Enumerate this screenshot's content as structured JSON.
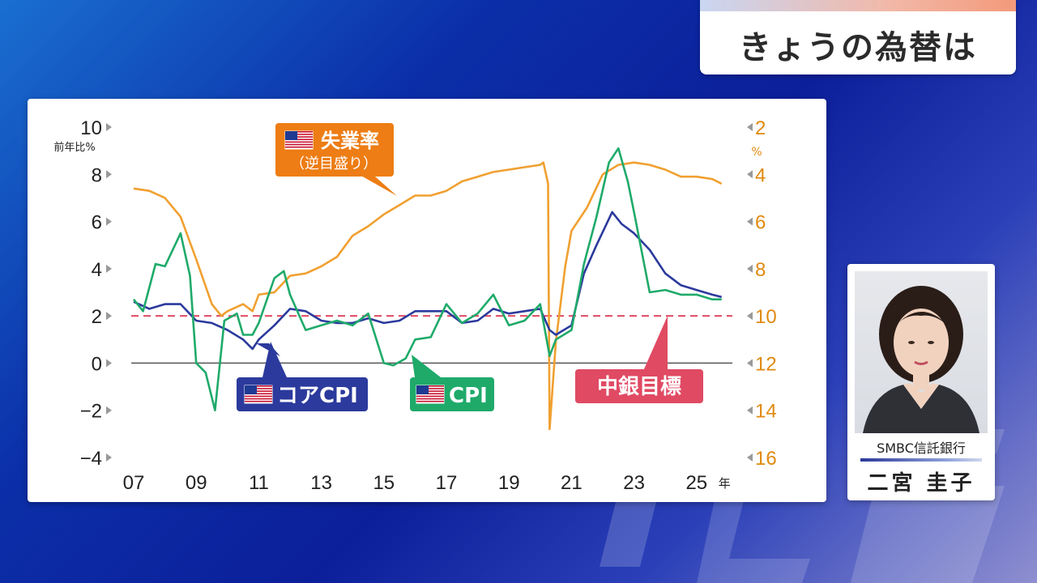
{
  "header": {
    "title": "きょうの為替は"
  },
  "presenter": {
    "company": "SMBC信託銀行",
    "name": "二宮 圭子"
  },
  "colors": {
    "unemployment": "#f0a030",
    "core_cpi": "#2b3a9c",
    "cpi": "#1faa6a",
    "target": "#e04a63"
  },
  "chart_data": {
    "type": "line",
    "x_ticks": [
      "07",
      "09",
      "11",
      "13",
      "15",
      "17",
      "19",
      "21",
      "23",
      "25"
    ],
    "x_unit": "年",
    "y_left": {
      "label": "前年比%",
      "range": [
        -4,
        10
      ],
      "ticks": [
        "10",
        "8",
        "6",
        "4",
        "2",
        "0",
        "−2",
        "−4"
      ]
    },
    "y_right": {
      "label": "%",
      "range": [
        16,
        2
      ],
      "inverted": true,
      "ticks": [
        "2",
        "4",
        "6",
        "8",
        "10",
        "12",
        "14",
        "16"
      ]
    },
    "series": [
      {
        "name": "失業率",
        "sub": "（逆目盛り）",
        "axis": "right",
        "color": "#f0a030",
        "points": [
          [
            2007.0,
            4.6
          ],
          [
            2007.5,
            4.7
          ],
          [
            2008.0,
            5.0
          ],
          [
            2008.5,
            5.8
          ],
          [
            2009.0,
            7.6
          ],
          [
            2009.5,
            9.5
          ],
          [
            2009.8,
            10.0
          ],
          [
            2010.0,
            9.8
          ],
          [
            2010.5,
            9.5
          ],
          [
            2010.8,
            9.8
          ],
          [
            2011.0,
            9.1
          ],
          [
            2011.5,
            9.0
          ],
          [
            2012.0,
            8.3
          ],
          [
            2012.5,
            8.2
          ],
          [
            2013.0,
            7.9
          ],
          [
            2013.5,
            7.5
          ],
          [
            2014.0,
            6.6
          ],
          [
            2014.5,
            6.2
          ],
          [
            2015.0,
            5.7
          ],
          [
            2015.5,
            5.3
          ],
          [
            2016.0,
            4.9
          ],
          [
            2016.5,
            4.9
          ],
          [
            2017.0,
            4.7
          ],
          [
            2017.5,
            4.3
          ],
          [
            2018.0,
            4.1
          ],
          [
            2018.5,
            3.9
          ],
          [
            2019.0,
            3.8
          ],
          [
            2019.5,
            3.7
          ],
          [
            2020.0,
            3.6
          ],
          [
            2020.1,
            3.5
          ],
          [
            2020.25,
            4.4
          ],
          [
            2020.3,
            14.8
          ],
          [
            2020.5,
            11.1
          ],
          [
            2020.8,
            7.9
          ],
          [
            2021.0,
            6.4
          ],
          [
            2021.5,
            5.4
          ],
          [
            2022.0,
            4.0
          ],
          [
            2022.5,
            3.6
          ],
          [
            2023.0,
            3.5
          ],
          [
            2023.5,
            3.6
          ],
          [
            2024.0,
            3.8
          ],
          [
            2024.5,
            4.1
          ],
          [
            2025.0,
            4.1
          ],
          [
            2025.5,
            4.2
          ],
          [
            2025.8,
            4.4
          ]
        ]
      },
      {
        "name": "コアCPI",
        "axis": "left",
        "color": "#2b3a9c",
        "points": [
          [
            2007.0,
            2.6
          ],
          [
            2007.5,
            2.3
          ],
          [
            2008.0,
            2.5
          ],
          [
            2008.5,
            2.5
          ],
          [
            2009.0,
            1.8
          ],
          [
            2009.5,
            1.7
          ],
          [
            2010.0,
            1.4
          ],
          [
            2010.5,
            1.0
          ],
          [
            2010.8,
            0.6
          ],
          [
            2011.0,
            1.0
          ],
          [
            2011.5,
            1.6
          ],
          [
            2012.0,
            2.3
          ],
          [
            2012.5,
            2.2
          ],
          [
            2013.0,
            1.8
          ],
          [
            2013.5,
            1.7
          ],
          [
            2014.0,
            1.7
          ],
          [
            2014.5,
            1.9
          ],
          [
            2015.0,
            1.7
          ],
          [
            2015.5,
            1.8
          ],
          [
            2016.0,
            2.2
          ],
          [
            2016.5,
            2.2
          ],
          [
            2017.0,
            2.2
          ],
          [
            2017.5,
            1.7
          ],
          [
            2018.0,
            1.8
          ],
          [
            2018.5,
            2.3
          ],
          [
            2019.0,
            2.1
          ],
          [
            2019.5,
            2.2
          ],
          [
            2020.0,
            2.3
          ],
          [
            2020.3,
            1.4
          ],
          [
            2020.5,
            1.2
          ],
          [
            2021.0,
            1.6
          ],
          [
            2021.4,
            3.8
          ],
          [
            2021.8,
            5.0
          ],
          [
            2022.3,
            6.4
          ],
          [
            2022.6,
            5.9
          ],
          [
            2023.0,
            5.5
          ],
          [
            2023.5,
            4.8
          ],
          [
            2024.0,
            3.8
          ],
          [
            2024.5,
            3.3
          ],
          [
            2025.0,
            3.1
          ],
          [
            2025.5,
            2.9
          ],
          [
            2025.8,
            2.8
          ]
        ]
      },
      {
        "name": "CPI",
        "axis": "left",
        "color": "#1faa6a",
        "points": [
          [
            2007.0,
            2.7
          ],
          [
            2007.3,
            2.2
          ],
          [
            2007.7,
            4.2
          ],
          [
            2008.0,
            4.1
          ],
          [
            2008.5,
            5.5
          ],
          [
            2008.8,
            3.7
          ],
          [
            2009.0,
            0.0
          ],
          [
            2009.3,
            -0.4
          ],
          [
            2009.6,
            -2.0
          ],
          [
            2009.9,
            1.8
          ],
          [
            2010.3,
            2.1
          ],
          [
            2010.5,
            1.2
          ],
          [
            2010.8,
            1.2
          ],
          [
            2011.0,
            1.7
          ],
          [
            2011.5,
            3.6
          ],
          [
            2011.8,
            3.9
          ],
          [
            2012.0,
            2.9
          ],
          [
            2012.5,
            1.4
          ],
          [
            2013.0,
            1.6
          ],
          [
            2013.5,
            1.8
          ],
          [
            2014.0,
            1.6
          ],
          [
            2014.5,
            2.1
          ],
          [
            2015.0,
            0.0
          ],
          [
            2015.3,
            -0.1
          ],
          [
            2015.7,
            0.2
          ],
          [
            2016.0,
            1.0
          ],
          [
            2016.5,
            1.1
          ],
          [
            2017.0,
            2.5
          ],
          [
            2017.5,
            1.7
          ],
          [
            2018.0,
            2.1
          ],
          [
            2018.5,
            2.9
          ],
          [
            2019.0,
            1.6
          ],
          [
            2019.5,
            1.8
          ],
          [
            2020.0,
            2.5
          ],
          [
            2020.3,
            0.3
          ],
          [
            2020.5,
            1.0
          ],
          [
            2021.0,
            1.4
          ],
          [
            2021.4,
            4.2
          ],
          [
            2021.8,
            6.2
          ],
          [
            2022.2,
            8.5
          ],
          [
            2022.5,
            9.1
          ],
          [
            2022.8,
            7.7
          ],
          [
            2023.0,
            6.4
          ],
          [
            2023.5,
            3.0
          ],
          [
            2024.0,
            3.1
          ],
          [
            2024.5,
            2.9
          ],
          [
            2025.0,
            2.9
          ],
          [
            2025.5,
            2.7
          ],
          [
            2025.8,
            2.7
          ]
        ]
      }
    ],
    "target_line": {
      "label": "中銀目標",
      "value": 2
    },
    "labels": {
      "unemployment": "失業率",
      "unemployment_sub": "（逆目盛り）",
      "core_cpi": "コアCPI",
      "cpi": "CPI",
      "target": "中銀目標"
    }
  }
}
